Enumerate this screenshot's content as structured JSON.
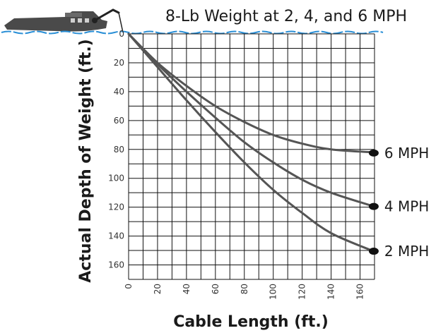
{
  "colors": {
    "grid": "#111111",
    "curve": "#555555",
    "water": "#2a8fd6",
    "boat": "#4a4a4a",
    "endpoint": "#111111"
  },
  "icons": [
    "boat-icon",
    "water-line",
    "rod-icon"
  ],
  "chart_data": {
    "type": "line",
    "title": "8-Lb Weight at 2, 4, and 6 MPH",
    "xlabel": "Cable Length (ft.)",
    "ylabel": "Actual Depth of Weight (ft.)",
    "xlim": [
      0,
      170
    ],
    "ylim": [
      0,
      170
    ],
    "y_inverted": true,
    "grid": true,
    "x_ticks": [
      "0",
      "20",
      "40",
      "60",
      "80",
      "100",
      "120",
      "140",
      "160"
    ],
    "y_ticks": [
      "0",
      "20",
      "40",
      "60",
      "80",
      "100",
      "120",
      "140",
      "160"
    ],
    "series": [
      {
        "name": "6 MPH",
        "points": [
          [
            0,
            0
          ],
          [
            20,
            20
          ],
          [
            40,
            36
          ],
          [
            60,
            50
          ],
          [
            80,
            61
          ],
          [
            100,
            70
          ],
          [
            120,
            76
          ],
          [
            140,
            80
          ],
          [
            168,
            82
          ]
        ]
      },
      {
        "name": "4 MPH",
        "points": [
          [
            0,
            0
          ],
          [
            20,
            21
          ],
          [
            40,
            40
          ],
          [
            60,
            58
          ],
          [
            80,
            75
          ],
          [
            100,
            89
          ],
          [
            120,
            101
          ],
          [
            140,
            110
          ],
          [
            168,
            119
          ]
        ]
      },
      {
        "name": "2 MPH",
        "points": [
          [
            0,
            0
          ],
          [
            20,
            23
          ],
          [
            40,
            46
          ],
          [
            60,
            68
          ],
          [
            80,
            89
          ],
          [
            100,
            108
          ],
          [
            120,
            124
          ],
          [
            140,
            138
          ],
          [
            168,
            150
          ]
        ]
      }
    ]
  }
}
